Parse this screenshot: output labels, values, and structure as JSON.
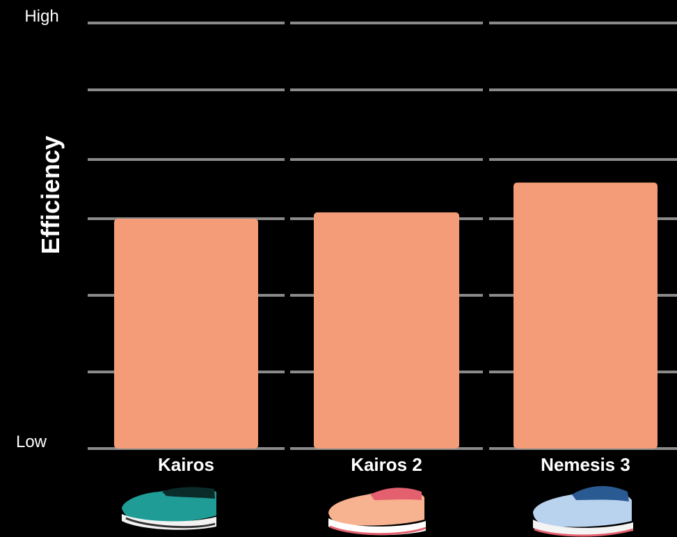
{
  "chart_data": {
    "type": "bar",
    "title": "",
    "xlabel": "",
    "ylabel": "Efficiency",
    "y_tick_labels": {
      "top": "High",
      "bottom": "Low"
    },
    "ylim": [
      0,
      100
    ],
    "categories": [
      "Kairos",
      "Kairos 2",
      "Nemesis 3"
    ],
    "values": [
      54,
      55.5,
      62.5
    ],
    "grid": true,
    "legend": "none",
    "colors": {
      "bar": "#F39C77",
      "grid": "#8A8A8A",
      "background": "#000000"
    },
    "category_images": [
      "teal-running-shoe",
      "peach-running-shoe",
      "light-blue-running-shoe"
    ]
  }
}
